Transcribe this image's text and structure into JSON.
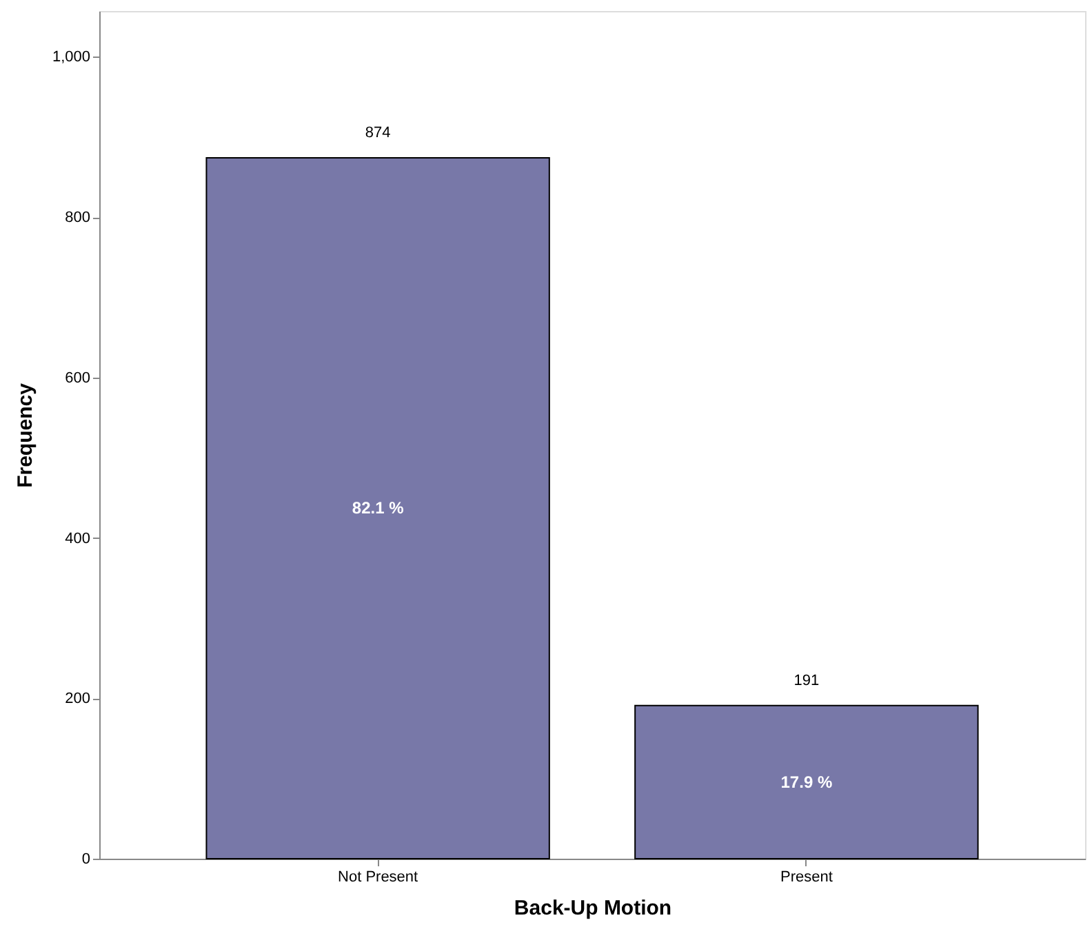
{
  "chart_data": {
    "type": "bar",
    "xlabel": "Back-Up Motion",
    "ylabel": "Frequency",
    "categories": [
      "Not Present",
      "Present"
    ],
    "values": [
      874,
      191
    ],
    "color": "#7878a8",
    "data_labels": true,
    "annotations": [
      "82.1 %",
      "17.9 %"
    ],
    "ylim": [
      0,
      1057
    ],
    "yticks": [
      0,
      200,
      400,
      600,
      800,
      {
        "value": 1000,
        "label": "1,000"
      }
    ],
    "grid": false
  }
}
